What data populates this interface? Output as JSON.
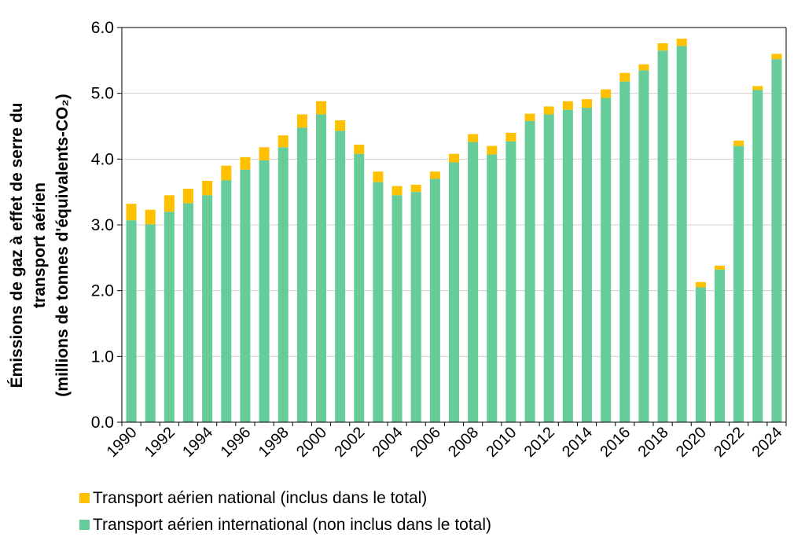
{
  "chart_data": {
    "type": "bar",
    "stacked": true,
    "categories": [
      "1990",
      "1991",
      "1992",
      "1993",
      "1994",
      "1995",
      "1996",
      "1997",
      "1998",
      "1999",
      "2000",
      "2001",
      "2002",
      "2003",
      "2004",
      "2005",
      "2006",
      "2007",
      "2008",
      "2009",
      "2010",
      "2011",
      "2012",
      "2013",
      "2014",
      "2015",
      "2016",
      "2017",
      "2018",
      "2019",
      "2020",
      "2021",
      "2022",
      "2023",
      "2024"
    ],
    "x_tick_labels": [
      "1990",
      "1992",
      "1994",
      "1996",
      "1998",
      "2000",
      "2002",
      "2004",
      "2006",
      "2008",
      "2010",
      "2012",
      "2014",
      "2016",
      "2018",
      "2020",
      "2022",
      "2024"
    ],
    "series": [
      {
        "name": "Transport aérien international (non inclus dans le total)",
        "color": "#66cc99",
        "values": [
          3.07,
          3.01,
          3.2,
          3.33,
          3.45,
          3.68,
          3.84,
          3.98,
          4.18,
          4.48,
          4.68,
          4.43,
          4.08,
          3.65,
          3.45,
          3.5,
          3.7,
          3.95,
          4.26,
          4.07,
          4.27,
          4.58,
          4.68,
          4.75,
          4.78,
          4.93,
          5.18,
          5.35,
          5.65,
          5.72,
          2.05,
          2.32,
          4.2,
          5.05,
          5.52
        ]
      },
      {
        "name": "Transport aérien national (inclus dans le total)",
        "color": "#ffc000",
        "values": [
          0.25,
          0.22,
          0.25,
          0.22,
          0.22,
          0.22,
          0.19,
          0.2,
          0.18,
          0.2,
          0.2,
          0.16,
          0.14,
          0.16,
          0.14,
          0.11,
          0.11,
          0.13,
          0.12,
          0.13,
          0.13,
          0.11,
          0.12,
          0.13,
          0.13,
          0.13,
          0.13,
          0.09,
          0.11,
          0.11,
          0.08,
          0.06,
          0.08,
          0.06,
          0.08
        ]
      }
    ],
    "ylabel_lines": [
      "Émissions de gaz à effet de serre du",
      "transport aérien",
      "(millions de tonnes d'équivalents-CO₂)"
    ],
    "ylim": [
      0,
      6
    ],
    "y_ticks": [
      "0.0",
      "1.0",
      "2.0",
      "3.0",
      "4.0",
      "5.0",
      "6.0"
    ],
    "grid": true,
    "legend_position": "bottom-left",
    "legend_order": [
      1,
      0
    ]
  }
}
